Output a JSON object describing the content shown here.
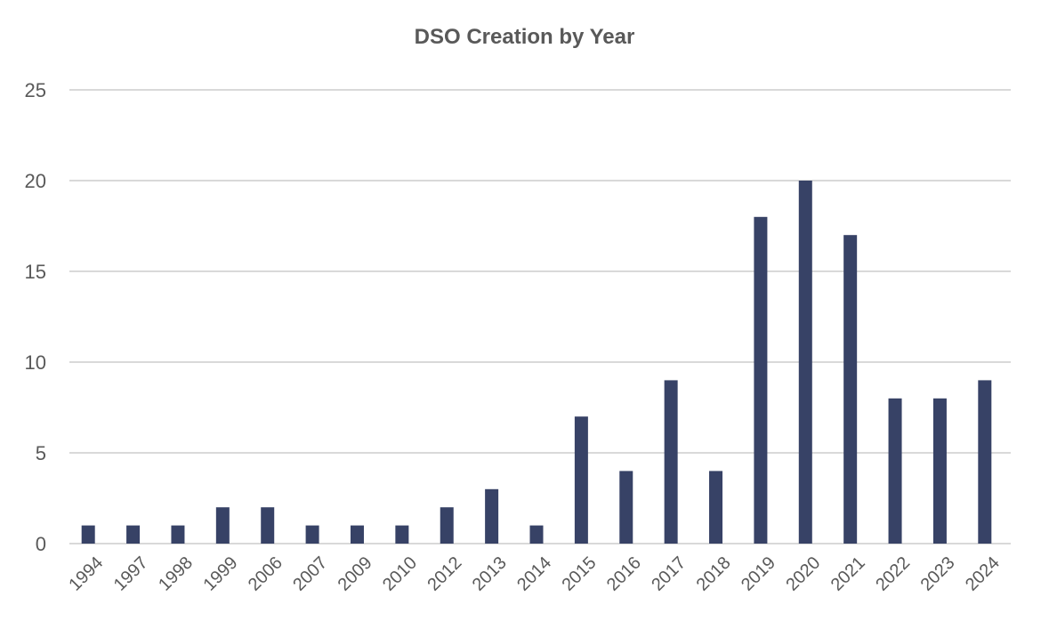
{
  "chart_data": {
    "type": "bar",
    "title": "DSO Creation by Year",
    "categories": [
      "1994",
      "1997",
      "1998",
      "1999",
      "2006",
      "2007",
      "2009",
      "2010",
      "2012",
      "2013",
      "2014",
      "2015",
      "2016",
      "2017",
      "2018",
      "2019",
      "2020",
      "2021",
      "2022",
      "2023",
      "2024"
    ],
    "values": [
      1,
      1,
      1,
      2,
      2,
      1,
      1,
      1,
      2,
      3,
      1,
      7,
      4,
      9,
      4,
      18,
      20,
      17,
      8,
      8,
      9
    ],
    "ylim": [
      0,
      25
    ],
    "yticks": [
      0,
      5,
      10,
      15,
      20,
      25
    ],
    "grid": true,
    "bar_color": "#374266",
    "grid_color": "#d9d9d9"
  }
}
